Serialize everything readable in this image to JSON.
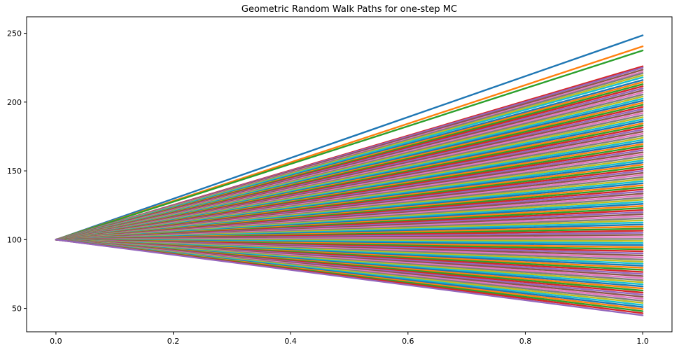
{
  "chart_data": {
    "type": "line",
    "title": "Geometric Random Walk Paths for one-step MC",
    "xlabel": "",
    "ylabel": "",
    "x": [
      0.0,
      1.0
    ],
    "xlim": [
      -0.05,
      1.05
    ],
    "ylim": [
      33,
      262
    ],
    "x_ticks": [
      0.0,
      0.2,
      0.4,
      0.6,
      0.8,
      1.0
    ],
    "x_tick_labels": [
      "0.0",
      "0.2",
      "0.4",
      "0.6",
      "0.8",
      "1.0"
    ],
    "y_ticks": [
      50,
      100,
      150,
      200,
      250
    ],
    "y_tick_labels": [
      "50",
      "100",
      "150",
      "200",
      "250"
    ],
    "grid": false,
    "legend": false,
    "start_value": 100,
    "series_colors": [
      "#1f77b4",
      "#ff7f0e",
      "#2ca02c",
      "#d62728",
      "#9467bd",
      "#8c564b",
      "#e377c2",
      "#7f7f7f",
      "#bcbd22",
      "#17becf"
    ],
    "end_values": [
      248.5,
      240.5,
      237.5,
      226,
      225,
      223.5,
      222,
      221,
      219.5,
      218,
      216,
      214.5,
      213,
      211.5,
      210,
      208.5,
      207,
      205.5,
      204,
      202.5,
      201,
      199.5,
      198,
      196.5,
      195,
      193.5,
      192,
      190.5,
      189,
      187.5,
      186,
      184.5,
      183,
      181.5,
      180,
      178.5,
      177,
      175.5,
      174,
      172.5,
      171,
      169.5,
      168,
      166.5,
      165,
      163.5,
      162,
      160.5,
      159,
      157.5,
      156,
      154.5,
      153,
      151.5,
      150,
      148.5,
      147,
      145.5,
      144,
      142.5,
      141,
      139.5,
      138,
      136.5,
      135,
      133.5,
      132,
      130.5,
      129,
      127.5,
      126,
      124.5,
      123,
      121.5,
      120,
      118.5,
      117,
      115.5,
      114,
      112.5,
      111,
      109.5,
      108,
      106.5,
      105,
      103.5,
      102,
      100.5,
      99,
      97.5,
      96,
      94.5,
      93,
      91.5,
      90,
      88.5,
      87,
      85.5,
      84,
      82.5,
      81,
      79.5,
      78,
      76.5,
      75,
      73.5,
      72,
      70.5,
      69,
      67.5,
      66,
      64.5,
      63,
      61.5,
      60,
      58.5,
      57,
      55.5,
      54,
      52.5,
      51,
      49.5,
      48,
      46.5,
      45
    ]
  }
}
